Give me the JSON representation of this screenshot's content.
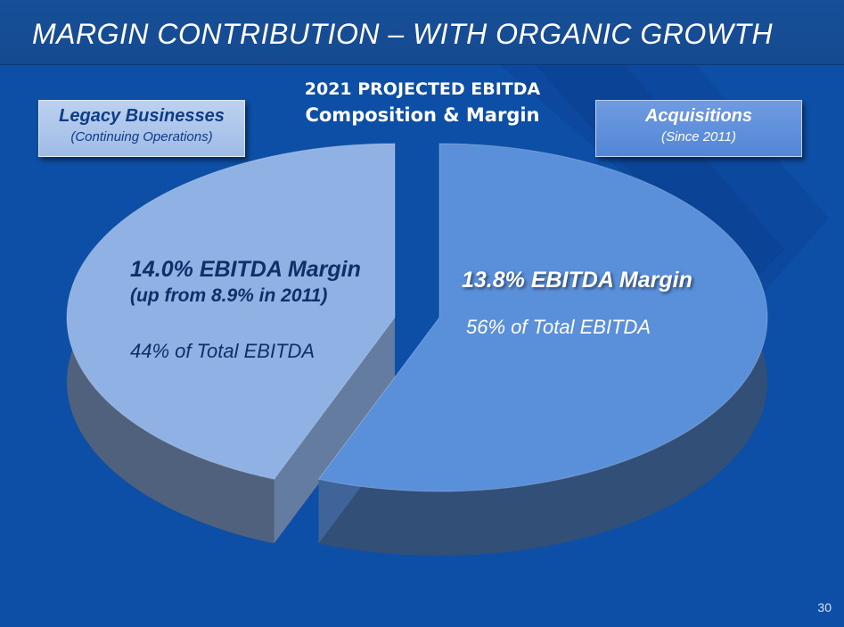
{
  "slide": {
    "title": "MARGIN CONTRIBUTION – WITH ORGANIC GROWTH",
    "page_number": "30"
  },
  "chart_data": {
    "type": "pie",
    "title": "2021 PROJECTED EBITDA",
    "subtitle": "Composition & Margin",
    "slices": [
      {
        "name": "Legacy Businesses",
        "sub_label": "(Continuing Operations)",
        "value": 44,
        "share_label": "44% of Total EBITDA",
        "margin_label": "14.0% EBITDA Margin",
        "margin_note": "(up from 8.9% in 2011)",
        "color": "#8fb1e3"
      },
      {
        "name": "Acquisitions",
        "sub_label": "(Since 2011)",
        "value": 56,
        "share_label": "56% of Total EBITDA",
        "margin_label": "13.8% EBITDA Margin",
        "color": "#5a8fda"
      }
    ]
  },
  "colors": {
    "background": "#0d4fa6",
    "title_bar": "#174f98",
    "legacy_slice": "#8fb1e3",
    "acquisitions_slice": "#5a8fda"
  }
}
